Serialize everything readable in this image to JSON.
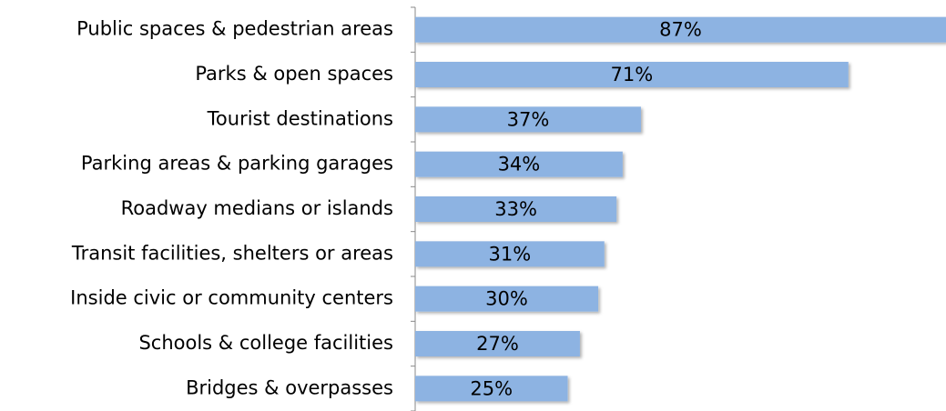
{
  "chart_data": {
    "type": "bar",
    "orientation": "horizontal",
    "categories": [
      "Public spaces & pedestrian areas",
      "Parks & open spaces",
      "Tourist destinations",
      "Parking areas & parking garages",
      "Roadway medians or islands",
      "Transit facilities, shelters or areas",
      "Inside civic or community centers",
      "Schools & college facilities",
      "Bridges & overpasses"
    ],
    "values": [
      87,
      71,
      37,
      34,
      33,
      31,
      30,
      27,
      25
    ],
    "value_labels": [
      "87%",
      "71%",
      "37%",
      "34%",
      "33%",
      "31%",
      "30%",
      "27%",
      "25%"
    ],
    "color": "#8db3e2"
  }
}
